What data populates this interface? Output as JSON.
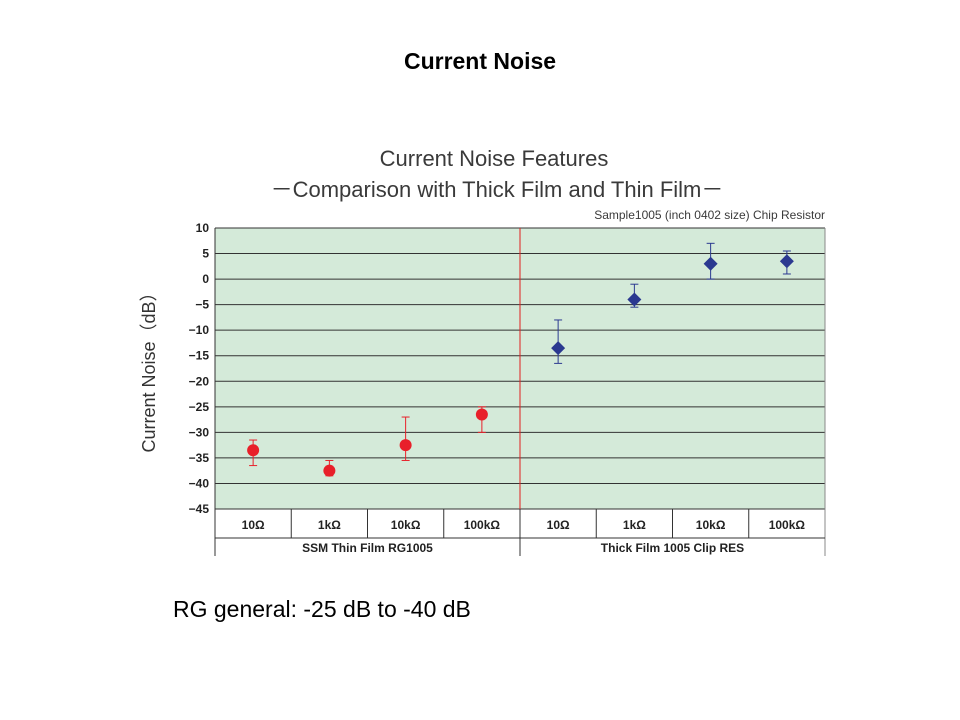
{
  "slide": {
    "title": "Current Noise",
    "note": "RG general: -25 dB to -40 dB"
  },
  "colors": {
    "plot_bg": "#d4ead9",
    "grid": "#333333",
    "divider": "#e02020",
    "thin_film": "#e8202a",
    "thick_film": "#2b3990"
  },
  "chart_data": {
    "type": "scatter",
    "title": "Current Noise Features",
    "subtitle": "－Comparison with Thick Film and Thin Film－",
    "sample_note": "Sample1005 (inch 0402 size) Chip Resistor",
    "ylabel": "Current Noise（dB）",
    "ylim": [
      -45,
      10
    ],
    "yticks": [
      10,
      5,
      0,
      -5,
      -10,
      -15,
      -20,
      -25,
      -30,
      -35,
      -40,
      -45
    ],
    "ytick_labels": [
      "10",
      "5",
      "0",
      "−5",
      "−10",
      "−15",
      "−20",
      "−25",
      "−30",
      "−35",
      "−40",
      "−45"
    ],
    "grid": true,
    "categories": [
      "10Ω",
      "1kΩ",
      "10kΩ",
      "100kΩ",
      "10Ω",
      "1kΩ",
      "10kΩ",
      "100kΩ"
    ],
    "groups": [
      {
        "label": "SSM Thin Film RG1005"
      },
      {
        "label": "Thick Film 1005 Clip RES"
      }
    ],
    "series": [
      {
        "marker": "circle",
        "values": [
          -33.5,
          -37.5,
          -32.5,
          -26.5
        ],
        "err_low": [
          -36.5,
          -38.5,
          -35.5,
          -30
        ],
        "err_high": [
          -31.5,
          -35.5,
          -27,
          -25
        ]
      },
      {
        "marker": "diamond",
        "values": [
          -13.5,
          -4,
          3,
          3.5
        ],
        "err_low": [
          -16.5,
          -5.5,
          0,
          1
        ],
        "err_high": [
          -8,
          -1,
          7,
          5.5
        ]
      }
    ]
  }
}
